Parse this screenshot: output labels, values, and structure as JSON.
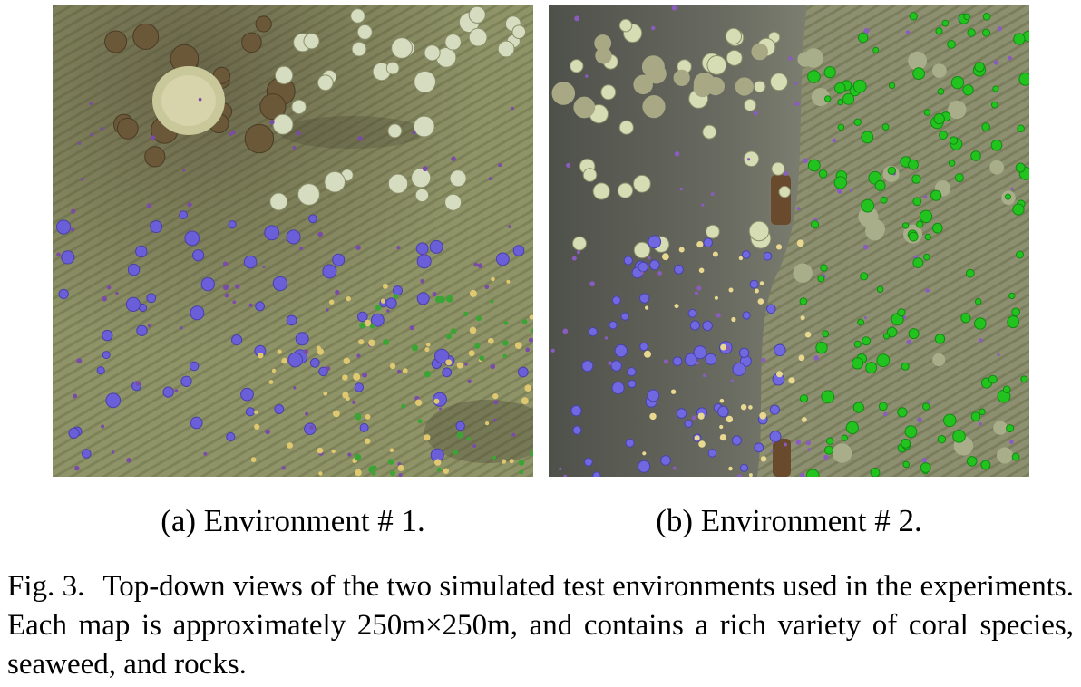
{
  "figure": {
    "label": "Fig. 3.",
    "caption": "Top-down views of the two simulated test environments used in the experiments. Each map is approximately 250m×250m, and contains a rich variety of coral species, seaweed, and rocks."
  },
  "panels": [
    {
      "caption": "(a) Environment # 1.",
      "colors": {
        "ground": "#8f9468",
        "stripe": "#767b52",
        "rock": "#6b5838",
        "pale_coral": "#d6dcc0",
        "blue_coral": "#6a5fd8",
        "green_seaweed": "#3aa534"
      }
    },
    {
      "caption": "(b) Environment # 2.",
      "colors": {
        "ground": "#8d9070",
        "flat": "#5f6158",
        "pale_coral": "#d6dcb4",
        "blue_coral": "#7068e0",
        "green_seaweed": "#22c31f",
        "pipe": "#6a4a2c"
      }
    }
  ]
}
